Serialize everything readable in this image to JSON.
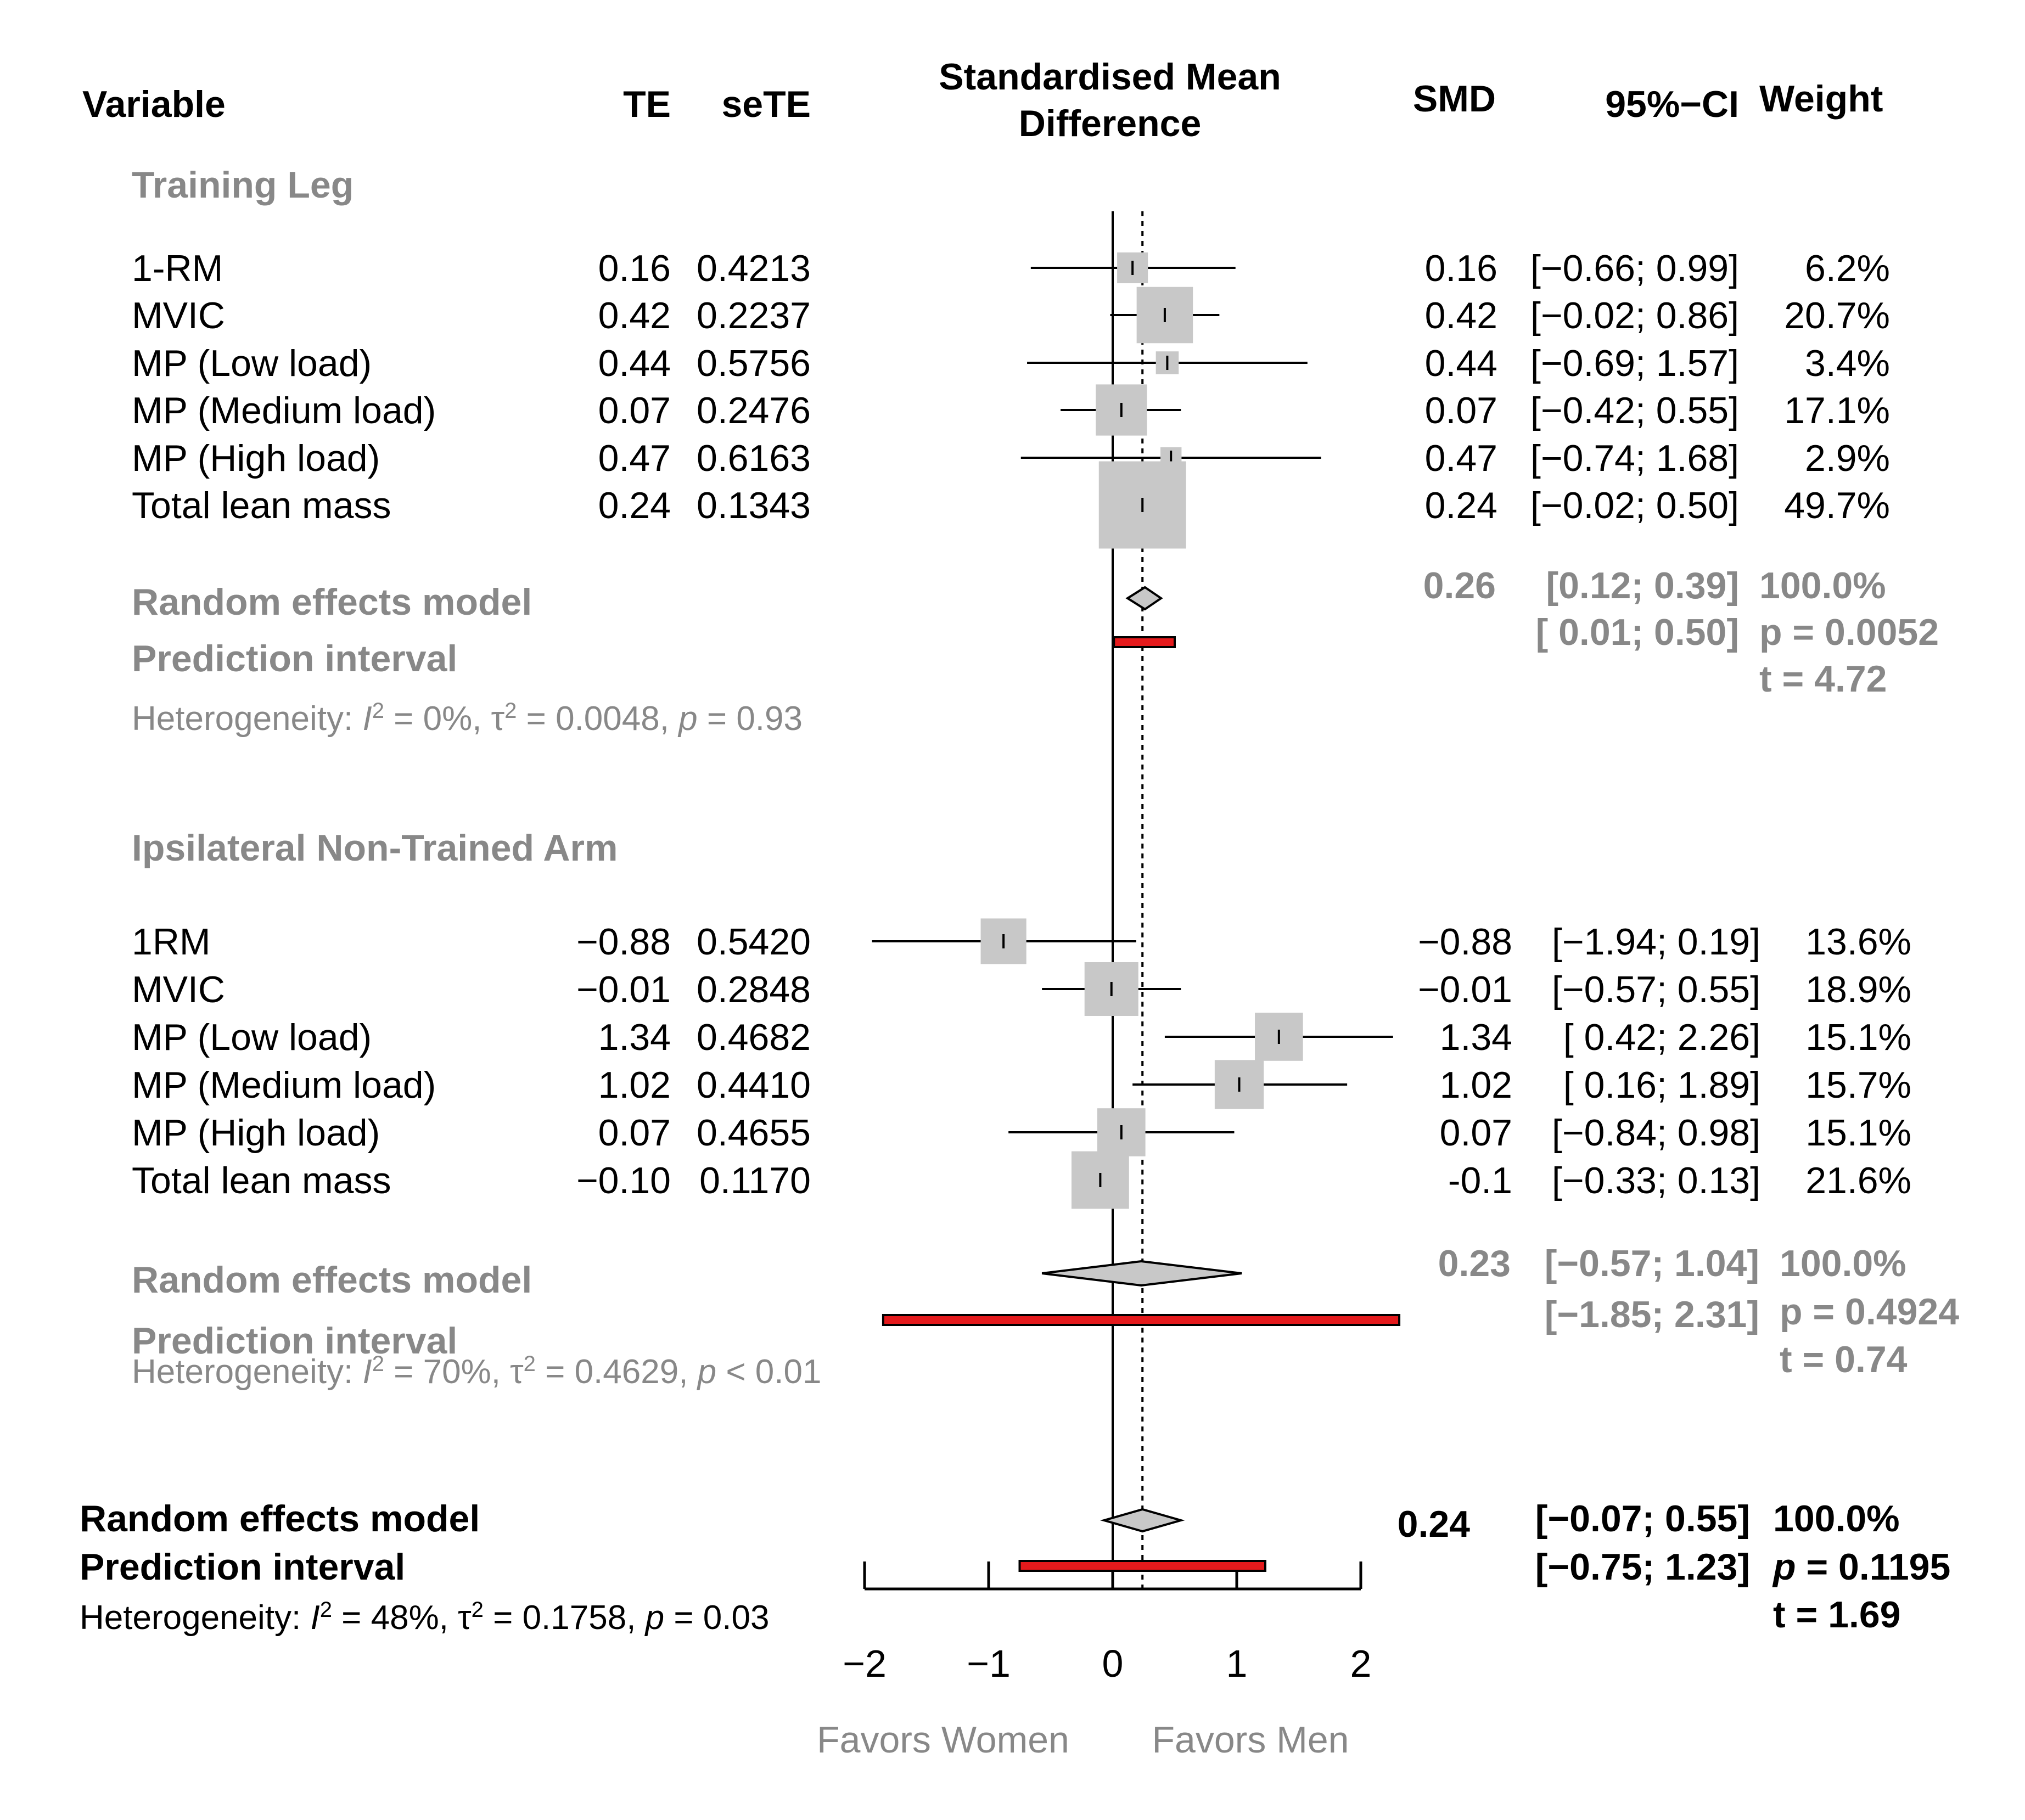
{
  "headers": {
    "variable": "Variable",
    "te": "TE",
    "sete": "seTE",
    "smd_title_line1": "Standardised Mean",
    "smd_title_line2": "Difference",
    "smd": "SMD",
    "ci": "95%−CI",
    "weight": "Weight"
  },
  "colors": {
    "subgroup_text": "#888888",
    "square_fill": "#c8c8c8",
    "diamond_fill": "#c8c8c8",
    "prediction_bar": "#e41a1c",
    "line": "#000000"
  },
  "chart_data": {
    "type": "forest",
    "title": "Standardised Mean Difference",
    "xlim": [
      -2,
      2
    ],
    "ticks": [
      -2,
      -1,
      0,
      1,
      2
    ],
    "tick_labels": [
      "−2",
      "−1",
      "0",
      "1",
      "2"
    ],
    "null_value": 0,
    "overall_reference": 0.24,
    "favors_left": "Favors Women",
    "favors_right": "Favors Men",
    "subgroups": [
      {
        "id": "training-leg",
        "title": "Training Leg",
        "studies": [
          {
            "name": "1-RM",
            "te": "0.16",
            "sete": "0.4213",
            "smd": "0.16",
            "ci": "[−0.66; 0.99]",
            "weight": "6.2%",
            "est": 0.16,
            "lo": -0.66,
            "hi": 0.99,
            "w": 6.2
          },
          {
            "name": "MVIC",
            "te": "0.42",
            "sete": "0.2237",
            "smd": "0.42",
            "ci": "[−0.02; 0.86]",
            "weight": "20.7%",
            "est": 0.42,
            "lo": -0.02,
            "hi": 0.86,
            "w": 20.7
          },
          {
            "name": "MP (Low load)",
            "te": "0.44",
            "sete": "0.5756",
            "smd": "0.44",
            "ci": "[−0.69; 1.57]",
            "weight": "3.4%",
            "est": 0.44,
            "lo": -0.69,
            "hi": 1.57,
            "w": 3.4
          },
          {
            "name": "MP (Medium load)",
            "te": "0.07",
            "sete": "0.2476",
            "smd": "0.07",
            "ci": "[−0.42; 0.55]",
            "weight": "17.1%",
            "est": 0.07,
            "lo": -0.42,
            "hi": 0.55,
            "w": 17.1
          },
          {
            "name": "MP (High load)",
            "te": "0.47",
            "sete": "0.6163",
            "smd": "0.47",
            "ci": "[−0.74; 1.68]",
            "weight": "2.9%",
            "est": 0.47,
            "lo": -0.74,
            "hi": 1.68,
            "w": 2.9
          },
          {
            "name": "Total lean mass",
            "te": "0.24",
            "sete": "0.1343",
            "smd": "0.24",
            "ci": "[−0.02; 0.50]",
            "weight": "49.7%",
            "est": 0.24,
            "lo": -0.02,
            "hi": 0.5,
            "w": 49.7
          }
        ],
        "random": {
          "label": "Random effects model",
          "smd": "0.26",
          "ci": "[0.12;  0.39]",
          "weight": "100.0%",
          "est": 0.26,
          "lo": 0.12,
          "hi": 0.39
        },
        "prediction": {
          "label": "Prediction interval",
          "ci": "[ 0.01; 0.50]",
          "lo": 0.01,
          "hi": 0.5
        },
        "p_value": "p = 0.0052",
        "t_value": "t = 4.72",
        "heterogeneity": {
          "prefix": "Heterogeneity: ",
          "i2_symbol": "I",
          "i2_value": " = 0%, ",
          "tau_symbol": "τ",
          "tau_value": " = 0.0048, ",
          "p_symbol": "p",
          "p_value": " = 0.93"
        }
      },
      {
        "id": "ipsilateral-arm",
        "title": "Ipsilateral Non-Trained  Arm",
        "studies": [
          {
            "name": "1RM",
            "te": "−0.88",
            "sete": "0.5420",
            "smd": "−0.88",
            "ci": "[−1.94; 0.19]",
            "weight": "13.6%",
            "est": -0.88,
            "lo": -1.94,
            "hi": 0.19,
            "w": 13.6
          },
          {
            "name": "MVIC",
            "te": "−0.01",
            "sete": "0.2848",
            "smd": "−0.01",
            "ci": "[−0.57; 0.55]",
            "weight": "18.9%",
            "est": -0.01,
            "lo": -0.57,
            "hi": 0.55,
            "w": 18.9
          },
          {
            "name": "MP (Low load)",
            "te": "1.34",
            "sete": "0.4682",
            "smd": "1.34",
            "ci": "[ 0.42; 2.26]",
            "weight": "15.1%",
            "est": 1.34,
            "lo": 0.42,
            "hi": 2.26,
            "w": 15.1
          },
          {
            "name": "MP (Medium load)",
            "te": "1.02",
            "sete": "0.4410",
            "smd": "1.02",
            "ci": "[ 0.16; 1.89]",
            "weight": "15.7%",
            "est": 1.02,
            "lo": 0.16,
            "hi": 1.89,
            "w": 15.7
          },
          {
            "name": "MP (High load)",
            "te": "0.07",
            "sete": "0.4655",
            "smd": "0.07",
            "ci": "[−0.84; 0.98]",
            "weight": "15.1%",
            "est": 0.07,
            "lo": -0.84,
            "hi": 0.98,
            "w": 15.1
          },
          {
            "name": "Total lean mass",
            "te": "−0.10",
            "sete": "0.1170",
            "smd": "-0.1",
            "ci": "[−0.33; 0.13]",
            "weight": "21.6%",
            "est": -0.1,
            "lo": -0.33,
            "hi": 0.13,
            "w": 21.6
          }
        ],
        "random": {
          "label": "Random effects model",
          "smd": "0.23",
          "ci": "[−0.57; 1.04]",
          "weight": "100.0%",
          "est": 0.23,
          "lo": -0.57,
          "hi": 1.04
        },
        "prediction": {
          "label": "Prediction interval",
          "ci": "[−1.85; 2.31]",
          "lo": -1.85,
          "hi": 2.31
        },
        "p_value": "p = 0.4924",
        "t_value": "t = 0.74",
        "heterogeneity": {
          "prefix": "Heterogeneity: ",
          "i2_symbol": "I",
          "i2_value": " = 70%, ",
          "tau_symbol": "τ",
          "tau_value": " = 0.4629, ",
          "p_symbol": "p",
          "p_value": " < 0.01"
        }
      }
    ],
    "overall": {
      "random": {
        "label": "Random effects model",
        "smd": "0.24",
        "ci": "[−0.07; 0.55]",
        "weight": "100.0%",
        "est": 0.24,
        "lo": -0.07,
        "hi": 0.55
      },
      "prediction": {
        "label": "Prediction interval",
        "ci": "[−0.75; 1.23]",
        "lo": -0.75,
        "hi": 1.23
      },
      "p_symbol": "p",
      "p_value": " = 0.1195",
      "t_value": "t = 1.69",
      "heterogeneity": {
        "prefix": "Heterogeneity: ",
        "i2_symbol": "I",
        "i2_value": " = 48%, ",
        "tau_symbol": "τ",
        "tau_value": " = 0.1758, ",
        "p_symbol": "p",
        "p_value": " = 0.03"
      }
    }
  }
}
